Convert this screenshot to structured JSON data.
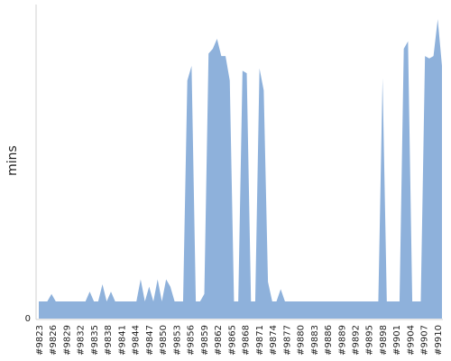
{
  "chart_data": {
    "type": "area",
    "ylabel": "mins",
    "xlabel": "",
    "title": "",
    "grid": false,
    "legend": "none",
    "ylim": [
      0,
      128
    ],
    "y_ticks": [
      0
    ],
    "color": "#8eb1db",
    "x_tick_labels": [
      "#9823",
      "#9826",
      "#9829",
      "#9832",
      "#9835",
      "#9838",
      "#9841",
      "#9844",
      "#9847",
      "#9850",
      "#9853",
      "#9856",
      "#9859",
      "#9862",
      "#9865",
      "#9868",
      "#9871",
      "#9874",
      "#9877",
      "#9880",
      "#9883",
      "#9886",
      "#9889",
      "#9892",
      "#9895",
      "#9898",
      "#9901",
      "#9904",
      "#9907",
      "#9910"
    ],
    "x_start": 9823,
    "x_end": 9911,
    "series": [
      {
        "values": [
          7,
          7,
          7,
          10,
          7,
          7,
          7,
          7,
          7,
          7,
          7,
          7,
          11,
          7,
          7,
          14,
          7,
          11,
          7,
          7,
          7,
          7,
          7,
          7,
          16,
          7,
          13,
          7,
          16,
          7,
          16,
          13,
          7,
          7,
          7,
          97,
          103,
          7,
          7,
          10,
          108,
          110,
          114,
          107,
          107,
          97,
          7,
          7,
          101,
          100,
          7,
          7,
          102,
          93,
          15,
          7,
          7,
          12,
          7,
          7,
          7,
          7,
          7,
          7,
          7,
          7,
          7,
          7,
          7,
          7,
          7,
          7,
          7,
          7,
          7,
          7,
          7,
          7,
          7,
          7,
          7,
          98,
          7,
          7,
          7,
          7,
          110,
          113,
          7,
          7,
          7,
          107,
          106,
          107,
          122,
          103
        ]
      }
    ]
  },
  "y_axis": {
    "zero_label": "0"
  }
}
